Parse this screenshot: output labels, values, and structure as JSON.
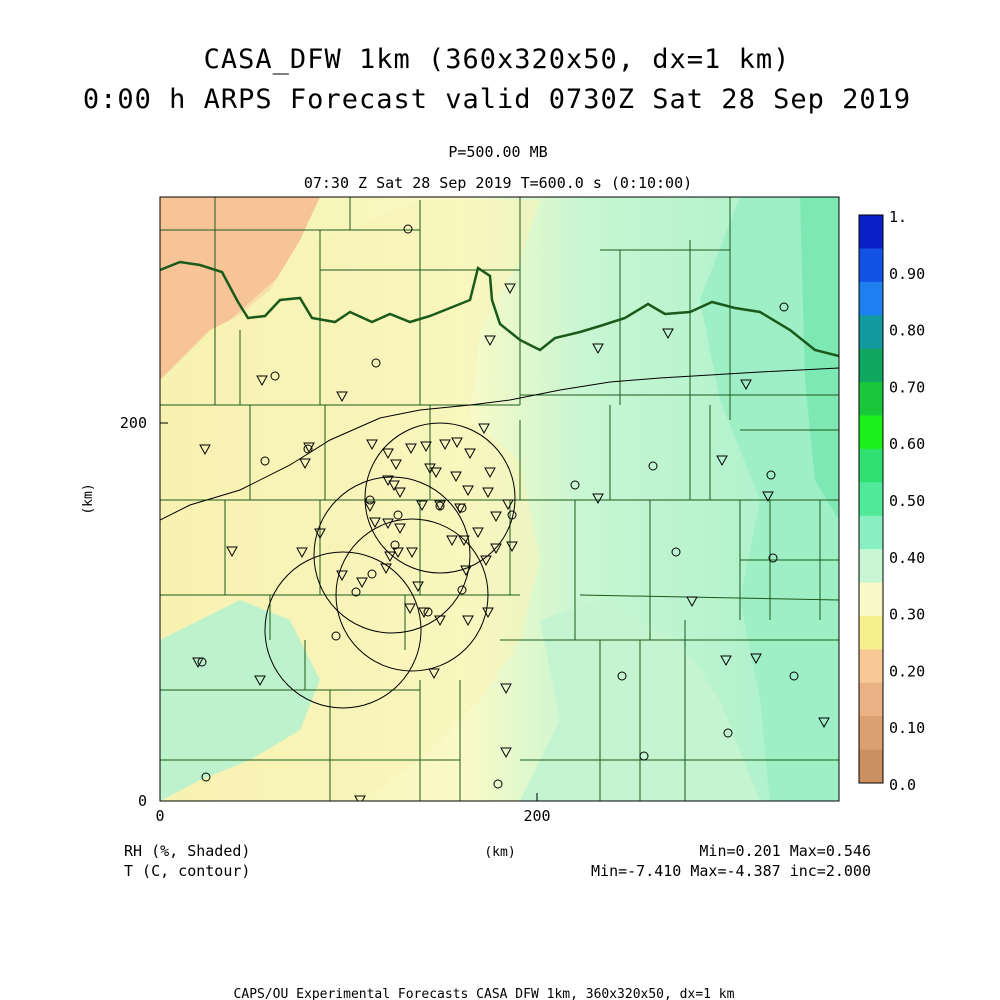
{
  "header": {
    "title_line1": "CASA_DFW 1km (360x320x50, dx=1 km)",
    "title_line2": "0:00 h ARPS Forecast valid 0730Z Sat 28 Sep 2019",
    "level": "P=500.00 MB",
    "time": "07:30 Z Sat 28 Sep 2019   T=600.0 s (0:10:00)"
  },
  "axes": {
    "x_unit": "(km)",
    "y_unit": "(km)",
    "x_ticks": [
      "0",
      "200"
    ],
    "y_ticks": [
      "0",
      "200"
    ]
  },
  "colorbar": {
    "labels": [
      "1.",
      "0.90",
      "0.80",
      "0.70",
      "0.60",
      "0.50",
      "0.40",
      "0.30",
      "0.20",
      "0.10",
      "0.0"
    ],
    "colors": [
      "#0a1fc8",
      "#1452e6",
      "#1e7ff0",
      "#139aa0",
      "#10a860",
      "#18c83a",
      "#1cf01c",
      "#30e070",
      "#50ea9a",
      "#88f0c0",
      "#c8f6d2",
      "#fafac8",
      "#f6f08c",
      "#f8c896",
      "#eab284",
      "#dca070",
      "#cc9060"
    ]
  },
  "footer": {
    "field1": "RH (%, Shaded)",
    "field2": "T (C, contour)",
    "stats1": "Min=0.201 Max=0.546",
    "stats2": "Min=-7.410 Max=-4.387 inc=2.000",
    "credit": "CAPS/OU Experimental Forecasts  CASA DFW 1km, 360x320x50, dx=1 km"
  },
  "map": {
    "color_rh_low": "#f6c496",
    "color_rh_mid": "#fafac8",
    "color_rh_green": "#c8f6d2",
    "color_rh_high": "#a6f0cc",
    "color_boundary": "#1a5a1a",
    "color_contour": "#000000",
    "radar_rings": 4,
    "station_triangles": 72,
    "station_circles": 30
  }
}
